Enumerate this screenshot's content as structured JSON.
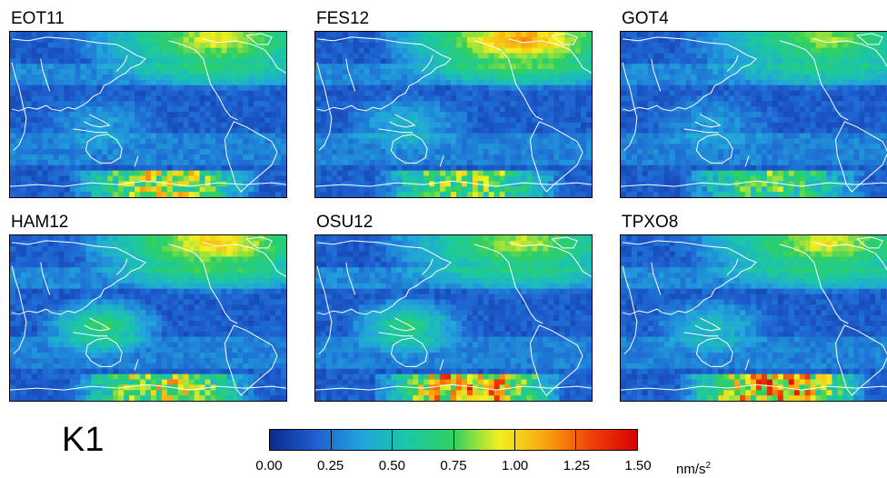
{
  "figure": {
    "constituent": "K1",
    "panels": [
      {
        "title": "EOT11",
        "row": 0,
        "col": 0,
        "north_hot": 0.8,
        "south_hot": 1.0,
        "indo_hot": 0.2,
        "seed": 11
      },
      {
        "title": "FES12",
        "row": 0,
        "col": 1,
        "north_hot": 1.0,
        "south_hot": 0.85,
        "indo_hot": 0.3,
        "seed": 22
      },
      {
        "title": "GOT4",
        "row": 0,
        "col": 2,
        "north_hot": 0.7,
        "south_hot": 0.75,
        "indo_hot": 0.2,
        "seed": 33
      },
      {
        "title": "HAM12",
        "row": 1,
        "col": 0,
        "north_hot": 0.9,
        "south_hot": 1.0,
        "indo_hot": 0.6,
        "seed": 44
      },
      {
        "title": "OSU12",
        "row": 1,
        "col": 1,
        "north_hot": 0.75,
        "south_hot": 1.3,
        "indo_hot": 0.55,
        "seed": 55
      },
      {
        "title": "TPXO8",
        "row": 1,
        "col": 2,
        "north_hot": 0.8,
        "south_hot": 1.3,
        "indo_hot": 0.35,
        "seed": 66
      }
    ]
  },
  "colorbar": {
    "min": 0.0,
    "max": 1.5,
    "ticks": [
      "0.00",
      "0.25",
      "0.50",
      "0.75",
      "1.00",
      "1.25",
      "1.50"
    ],
    "unit_base": "nm/s",
    "unit_exp": "2",
    "colors": [
      "#0a2a8c",
      "#1e5fd0",
      "#22a4dc",
      "#1cc7a6",
      "#30d060",
      "#f2f020",
      "#f8a410",
      "#f04008",
      "#d80000"
    ]
  }
}
